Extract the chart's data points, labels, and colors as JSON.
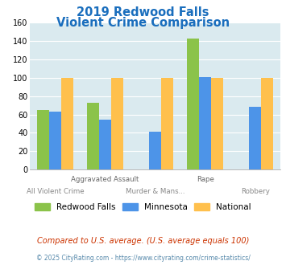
{
  "title_line1": "2019 Redwood Falls",
  "title_line2": "Violent Crime Comparison",
  "title_color": "#1a6ebd",
  "categories": [
    "All Violent Crime",
    "Aggravated Assault",
    "Murder & Mans...",
    "Rape",
    "Robbery"
  ],
  "xtick_row1": [
    "",
    "Aggravated Assault",
    "",
    "Rape",
    ""
  ],
  "xtick_row2": [
    "All Violent Crime",
    "",
    "Murder & Mans...",
    "",
    "Robbery"
  ],
  "series": {
    "Redwood Falls": [
      65,
      73,
      0,
      143,
      0
    ],
    "Minnesota": [
      63,
      54,
      41,
      101,
      68
    ],
    "National": [
      100,
      100,
      100,
      100,
      100
    ]
  },
  "colors": {
    "Redwood Falls": "#8bc34a",
    "Minnesota": "#4d94e8",
    "National": "#ffc04d"
  },
  "ylim": [
    0,
    160
  ],
  "yticks": [
    0,
    20,
    40,
    60,
    80,
    100,
    120,
    140,
    160
  ],
  "bg_color": "#daeaef",
  "footnote1": "Compared to U.S. average. (U.S. average equals 100)",
  "footnote2": "© 2025 CityRating.com - https://www.cityrating.com/crime-statistics/",
  "footnote1_color": "#cc3300",
  "footnote2_color": "#5588aa"
}
